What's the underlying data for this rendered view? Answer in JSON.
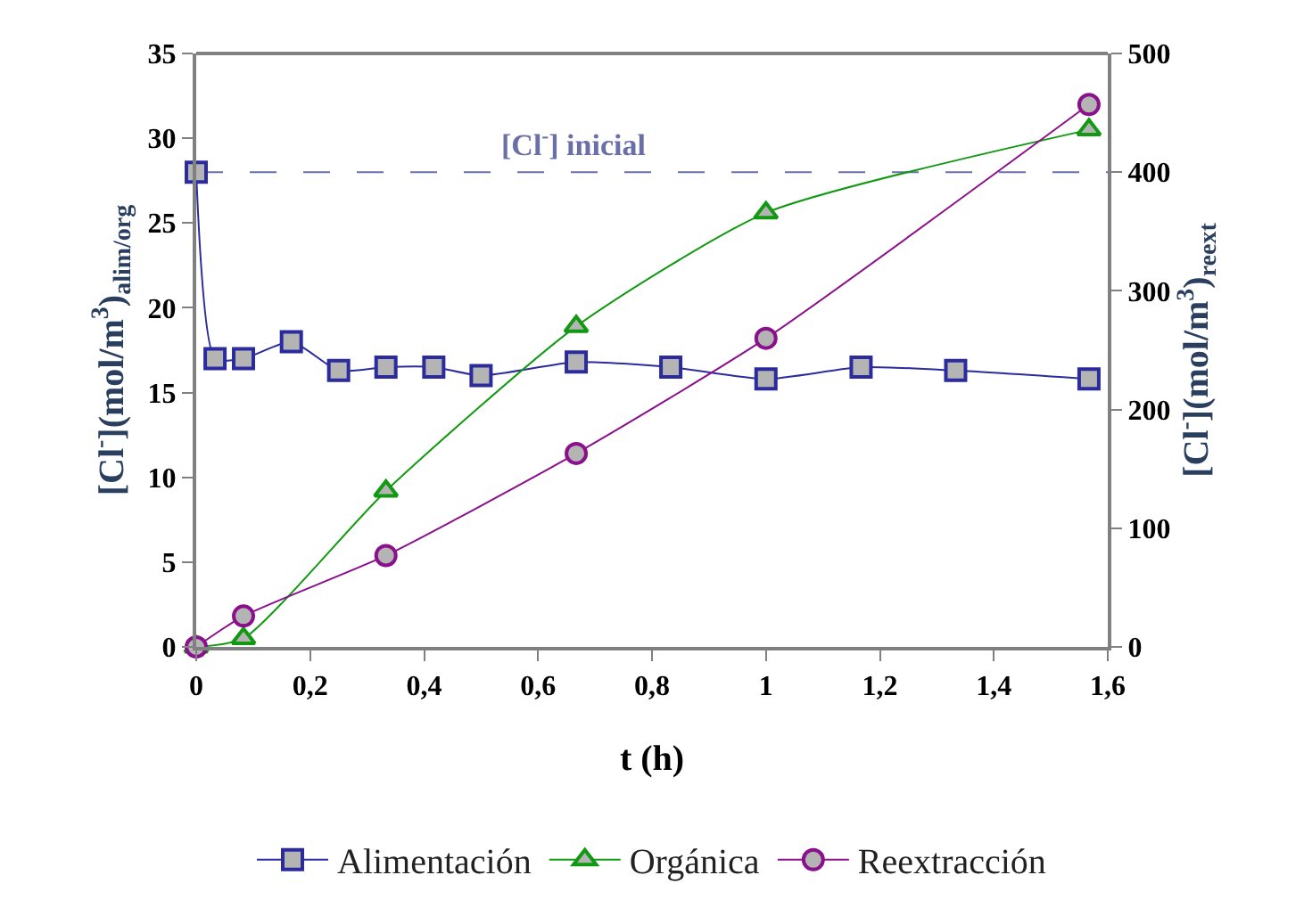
{
  "chart_data": {
    "type": "line",
    "xlabel": "t (h)",
    "ylabel": "[Cl$^{-}$](mol/m$^{3}$)$_{alim/org}$",
    "y2label": "[Cl$^{-}$](mol/m$^{3}$)$_{reext}$",
    "xlim": [
      0,
      1.6
    ],
    "xticks": [
      0,
      {
        "value": 0.2,
        "label": "0,2"
      },
      {
        "value": 0.4,
        "label": "0,4"
      },
      {
        "value": 0.6,
        "label": "0,6"
      },
      {
        "value": 0.8,
        "label": "0,8"
      },
      1,
      {
        "value": 1.2,
        "label": "1,2"
      },
      {
        "value": 1.4,
        "label": "1,4"
      },
      {
        "value": 1.6,
        "label": "1,6"
      }
    ],
    "ylim": [
      0,
      35
    ],
    "yticks": [
      0,
      5,
      10,
      15,
      20,
      25,
      30,
      35
    ],
    "y2lim": [
      0,
      500
    ],
    "y2ticks": [
      0,
      100,
      200,
      300,
      400,
      500
    ],
    "grid": false,
    "legend": "bottom",
    "ref_lines": [
      {
        "axis": "y",
        "value": 28,
        "label": "[Cl$^{-}$] inicial",
        "color": "#6a6fa8",
        "line_style": "dashed"
      }
    ],
    "series": [
      {
        "name": "Alimentación",
        "color": "#2b2b9e",
        "marker": "square",
        "x": [
          0,
          0.033,
          0.083,
          0.167,
          0.25,
          0.333,
          0.417,
          0.5,
          0.667,
          0.833,
          1,
          1.167,
          1.333,
          1.567
        ],
        "values": [
          28,
          17,
          17,
          18,
          16.3,
          16.5,
          16.5,
          16,
          16.8,
          16.5,
          15.8,
          16.5,
          16.3,
          15.8
        ]
      },
      {
        "name": "Orgánica",
        "color": "#119911",
        "marker": "triangle",
        "x": [
          0,
          0.083,
          0.333,
          0.667,
          1,
          1.567
        ],
        "values": [
          0,
          0.5,
          9.2,
          18.9,
          25.6,
          30.5
        ]
      },
      {
        "name": "Reextracción",
        "color": "#8b108b",
        "marker": "circle",
        "axis": "y2",
        "x": [
          0,
          0.083,
          0.333,
          0.667,
          1,
          1.567
        ],
        "values": [
          0,
          26,
          77,
          163,
          260,
          457
        ]
      }
    ]
  }
}
